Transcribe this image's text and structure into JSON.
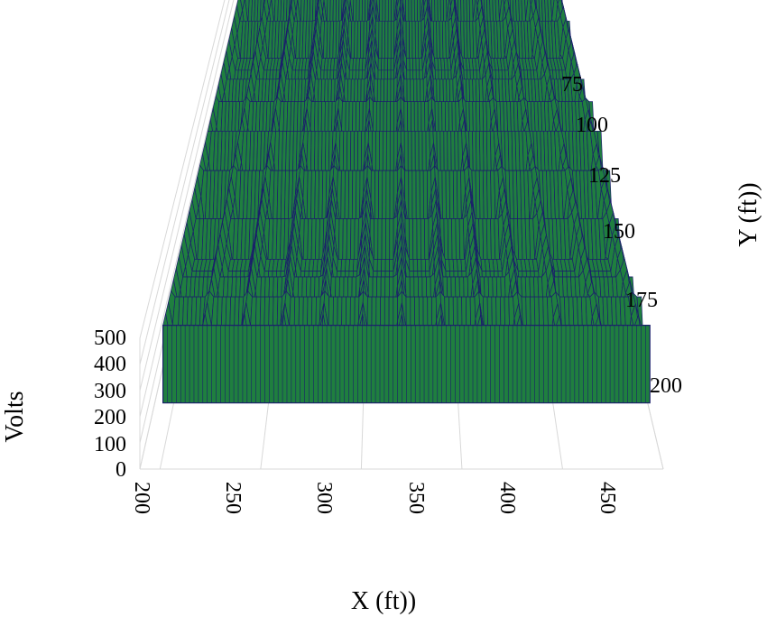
{
  "chart_data": {
    "type": "surface-3d",
    "xlabel": "X (ft))",
    "ylabel": "Y (ft))",
    "zlabel": "Volts",
    "x_ticks": [
      "200",
      "250",
      "300",
      "350",
      "400",
      "450"
    ],
    "y_ticks": [
      "75",
      "100",
      "125",
      "150",
      "175",
      "200"
    ],
    "z_ticks": [
      "0",
      "100",
      "200",
      "300",
      "400",
      "500"
    ],
    "xlim": [
      200,
      460
    ],
    "ylim": [
      50,
      210
    ],
    "zlim": [
      0,
      500
    ],
    "surface": {
      "description_values": "periodic ridge pattern",
      "x_range": [
        210,
        455
      ],
      "y_range": [
        55,
        205
      ],
      "base_volts": 220,
      "peak_volts": 500,
      "x_period_ft": 20,
      "y_period_ft": 12.5
    },
    "grid": true,
    "colors": {
      "surface_fill": "#1f7f3f",
      "surface_line": "#1b1f6b",
      "grid": "#d8d8d8"
    }
  }
}
